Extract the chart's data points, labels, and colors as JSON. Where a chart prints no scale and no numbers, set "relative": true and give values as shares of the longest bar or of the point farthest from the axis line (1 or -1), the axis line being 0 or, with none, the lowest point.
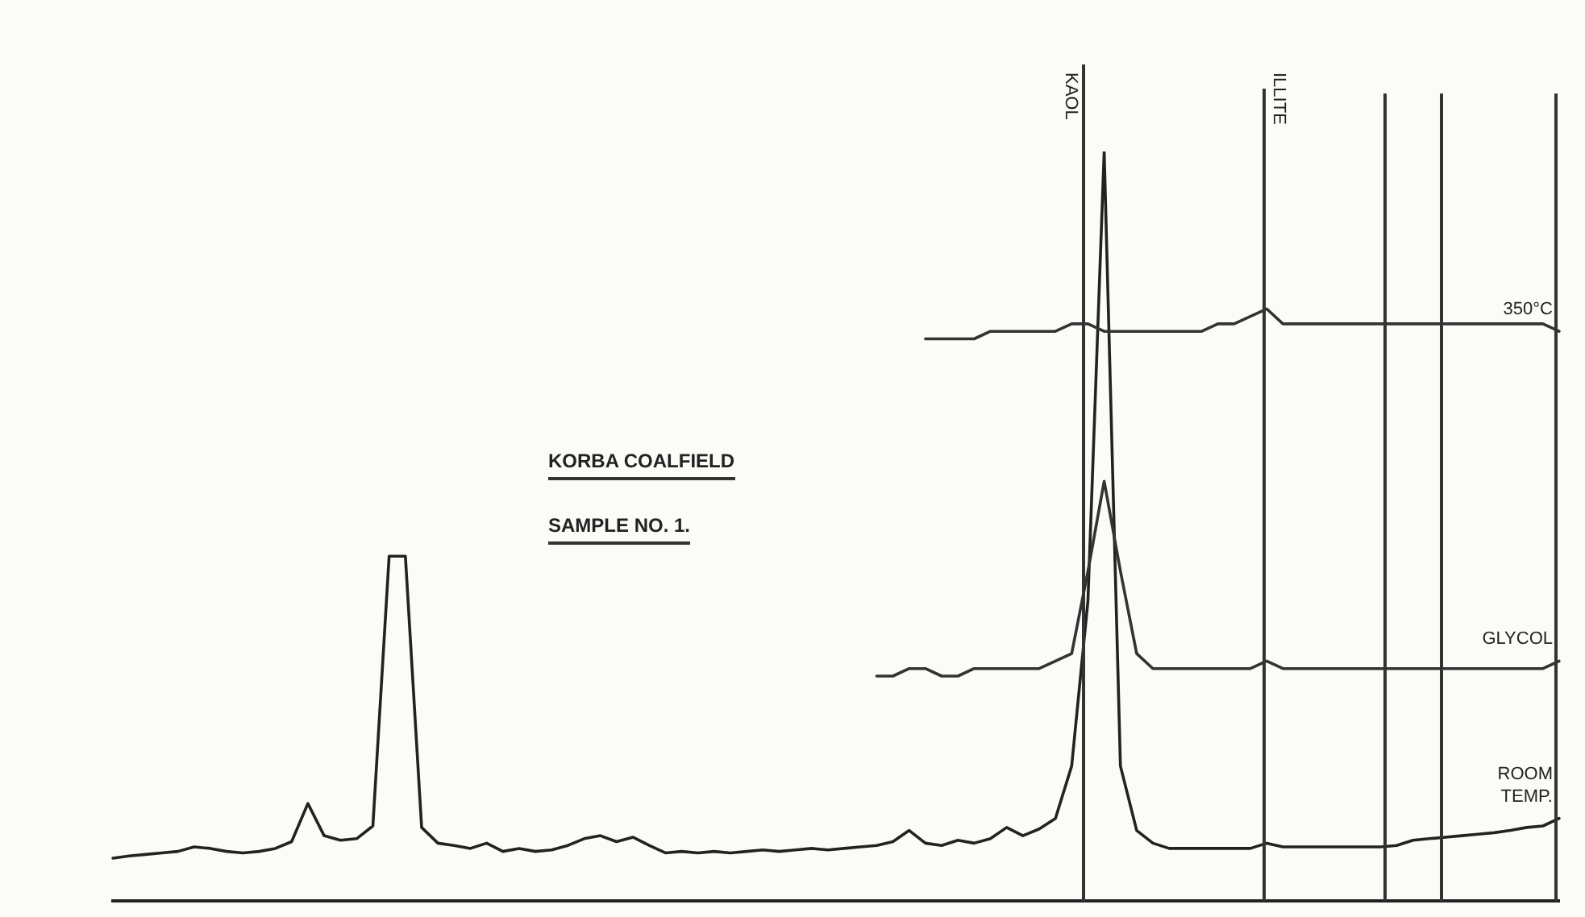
{
  "chart_data": {
    "type": "line",
    "relative": true,
    "legend": false,
    "grid": false,
    "marker": "none",
    "line_style": "solid",
    "categories": [
      null,
      null,
      null,
      null,
      null,
      null,
      null,
      null,
      null,
      null,
      null,
      null,
      null,
      null,
      null,
      null,
      null,
      null,
      null,
      null,
      null,
      null,
      null,
      null,
      null,
      null,
      null,
      null,
      null,
      null,
      null,
      null,
      null,
      null,
      null,
      null,
      null,
      null,
      null,
      null,
      null,
      null,
      null,
      null,
      null,
      null,
      null,
      null,
      null,
      null,
      null,
      null,
      null,
      null,
      null,
      null,
      null,
      null,
      null,
      null,
      null,
      null,
      null,
      null,
      null,
      null,
      null,
      null,
      null,
      null,
      null,
      null,
      null,
      null,
      null,
      null,
      null,
      null,
      null,
      null,
      null,
      null,
      null,
      null,
      null,
      null,
      null,
      null,
      null,
      null
    ],
    "series": [
      {
        "name": "350°C",
        "color": "#333333",
        "values": [
          null,
          null,
          null,
          null,
          null,
          null,
          null,
          null,
          null,
          null,
          null,
          null,
          null,
          null,
          null,
          null,
          null,
          null,
          null,
          null,
          null,
          null,
          null,
          null,
          null,
          null,
          null,
          null,
          null,
          null,
          null,
          null,
          null,
          null,
          null,
          null,
          null,
          null,
          null,
          null,
          null,
          null,
          null,
          null,
          null,
          null,
          null,
          null,
          null,
          null,
          0.75,
          0.75,
          0.75,
          0.75,
          0.76,
          0.76,
          0.76,
          0.76,
          0.76,
          0.77,
          0.77,
          0.76,
          0.76,
          0.76,
          0.76,
          0.76,
          0.76,
          0.76,
          0.77,
          0.77,
          0.78,
          0.79,
          0.77,
          0.77,
          0.77,
          0.77,
          0.77,
          0.77,
          0.77,
          0.77,
          0.77,
          0.77,
          0.77,
          0.77,
          0.77,
          0.77,
          0.77,
          0.77,
          0.77,
          0.76
        ]
      },
      {
        "name": "GLYCOL",
        "color": "#333333",
        "values": [
          null,
          null,
          null,
          null,
          null,
          null,
          null,
          null,
          null,
          null,
          null,
          null,
          null,
          null,
          null,
          null,
          null,
          null,
          null,
          null,
          null,
          null,
          null,
          null,
          null,
          null,
          null,
          null,
          null,
          null,
          null,
          null,
          null,
          null,
          null,
          null,
          null,
          null,
          null,
          null,
          null,
          null,
          null,
          null,
          null,
          null,
          null,
          0.3,
          0.3,
          0.31,
          0.31,
          0.3,
          0.3,
          0.31,
          0.31,
          0.31,
          0.31,
          0.31,
          0.32,
          0.33,
          0.44,
          0.56,
          0.44,
          0.33,
          0.31,
          0.31,
          0.31,
          0.31,
          0.31,
          0.31,
          0.31,
          0.32,
          0.31,
          0.31,
          0.31,
          0.31,
          0.31,
          0.31,
          0.31,
          0.31,
          0.31,
          0.31,
          0.31,
          0.31,
          0.31,
          0.31,
          0.31,
          0.31,
          0.31,
          0.32
        ]
      },
      {
        "name": "ROOM TEMP.",
        "color": "#222222",
        "values": [
          0.057,
          0.06,
          0.062,
          0.064,
          0.066,
          0.072,
          0.07,
          0.066,
          0.064,
          0.066,
          0.07,
          0.079,
          0.13,
          0.087,
          0.081,
          0.083,
          0.1,
          0.46,
          0.46,
          0.098,
          0.077,
          0.074,
          0.07,
          0.077,
          0.066,
          0.07,
          0.066,
          0.068,
          0.074,
          0.083,
          0.087,
          0.079,
          0.085,
          0.074,
          0.064,
          0.066,
          0.064,
          0.066,
          0.064,
          0.066,
          0.068,
          0.066,
          0.068,
          0.07,
          0.068,
          0.07,
          0.072,
          0.074,
          0.079,
          0.094,
          0.077,
          0.074,
          0.081,
          0.077,
          0.083,
          0.098,
          0.087,
          0.096,
          0.11,
          0.18,
          0.4,
          1,
          0.18,
          0.094,
          0.077,
          0.07,
          0.07,
          0.07,
          0.07,
          0.07,
          0.07,
          0.077,
          0.072,
          0.072,
          0.072,
          0.072,
          0.072,
          0.072,
          0.072,
          0.074,
          0.081,
          0.083,
          0.085,
          0.087,
          0.089,
          0.091,
          0.094,
          0.098,
          0.1,
          0.11
        ]
      }
    ],
    "annotations": [
      "KORBA COALFIELD",
      "SAMPLE NO. 1.",
      "KAOL",
      "ILLITE"
    ]
  }
}
